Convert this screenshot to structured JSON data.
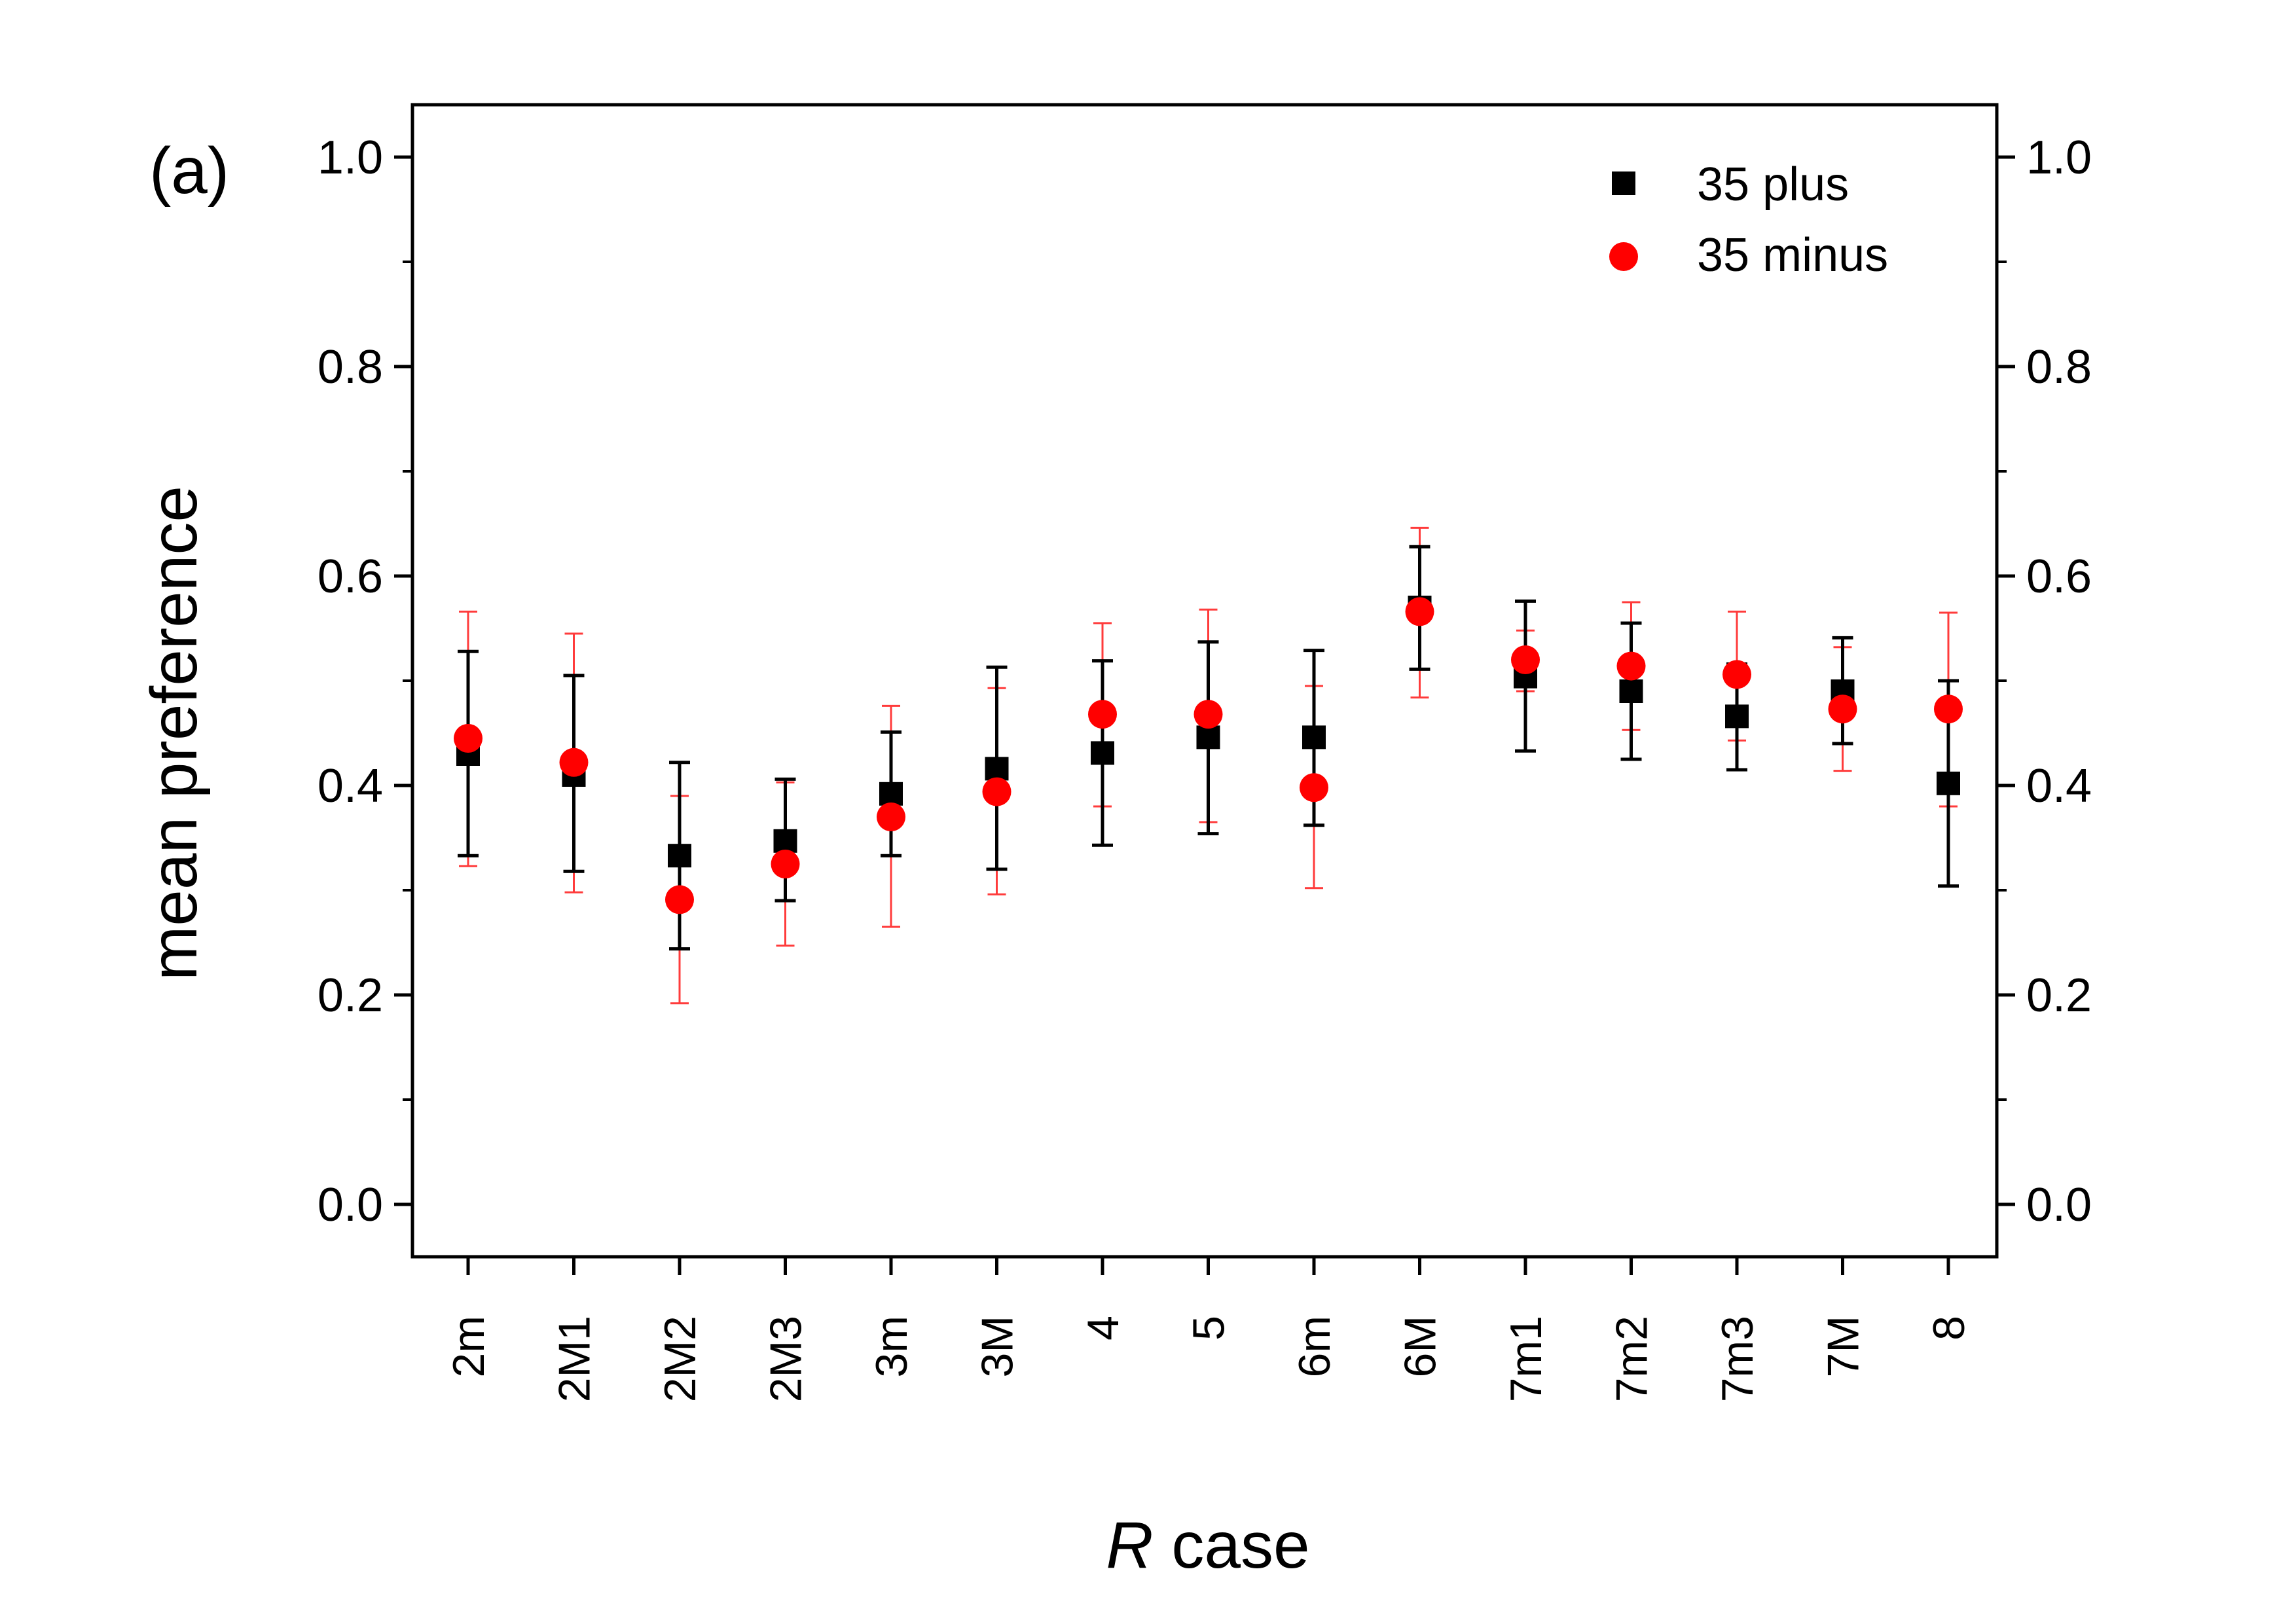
{
  "chart_data": {
    "type": "scatter",
    "panel_label": "(a)",
    "xlabel_italic": "R",
    "xlabel_rest": " case",
    "ylabel": "mean preference",
    "categories": [
      "2m",
      "2M1",
      "2M2",
      "2M3",
      "3m",
      "3M",
      "4",
      "5",
      "6m",
      "6M",
      "7m1",
      "7m2",
      "7m3",
      "7M",
      "8"
    ],
    "ylim": [
      -0.05,
      1.05
    ],
    "yticks": [
      0.0,
      0.2,
      0.4,
      0.6,
      0.8,
      1.0
    ],
    "ytick_labels": [
      "0.0",
      "0.2",
      "0.4",
      "0.6",
      "0.8",
      "1.0"
    ],
    "grid": false,
    "legend_position": "top-right",
    "series": [
      {
        "name": "35 plus",
        "marker": "square",
        "color": "#000000",
        "errorbar_color": "#000000",
        "values": [
          0.43,
          0.41,
          0.333,
          0.347,
          0.392,
          0.416,
          0.431,
          0.446,
          0.446,
          0.57,
          0.504,
          0.49,
          0.466,
          0.49,
          0.402
        ],
        "err_low": [
          0.333,
          0.318,
          0.244,
          0.29,
          0.333,
          0.32,
          0.343,
          0.354,
          0.362,
          0.511,
          0.433,
          0.425,
          0.415,
          0.44,
          0.304
        ],
        "err_high": [
          0.528,
          0.505,
          0.422,
          0.406,
          0.451,
          0.513,
          0.519,
          0.537,
          0.529,
          0.628,
          0.576,
          0.555,
          0.516,
          0.541,
          0.5
        ]
      },
      {
        "name": "35 minus",
        "marker": "circle",
        "color": "#ff0000",
        "errorbar_color": "#ff3b3b",
        "values": [
          0.445,
          0.422,
          0.291,
          0.325,
          0.37,
          0.394,
          0.468,
          0.468,
          0.398,
          0.566,
          0.52,
          0.514,
          0.506,
          0.473,
          0.473
        ],
        "err_low": [
          0.323,
          0.298,
          0.192,
          0.247,
          0.265,
          0.296,
          0.38,
          0.365,
          0.302,
          0.484,
          0.49,
          0.453,
          0.443,
          0.414,
          0.38
        ],
        "err_high": [
          0.566,
          0.545,
          0.39,
          0.403,
          0.476,
          0.493,
          0.555,
          0.568,
          0.495,
          0.646,
          0.548,
          0.575,
          0.566,
          0.532,
          0.565
        ]
      }
    ]
  }
}
